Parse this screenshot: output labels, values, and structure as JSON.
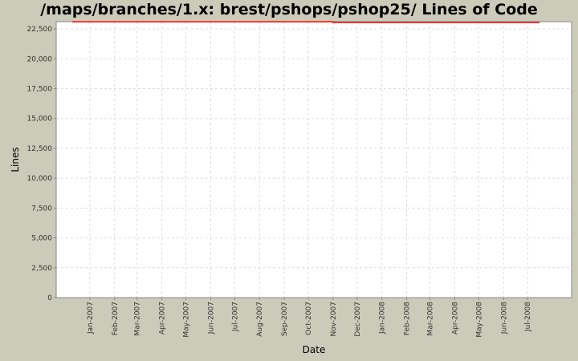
{
  "chart_data": {
    "type": "line",
    "title": "/maps/branches/1.x: brest/pshops/pshop25/ Lines of Code",
    "xlabel": "Date",
    "ylabel": "Lines",
    "ylim": [
      0,
      23110
    ],
    "xlim": [
      "2006-11-20",
      "2008-08-25"
    ],
    "grid": true,
    "yticks": [
      0,
      2500,
      5000,
      7500,
      10000,
      12500,
      15000,
      17500,
      20000,
      22500
    ],
    "ytick_labels": [
      "0",
      "2,500",
      "5,000",
      "7,500",
      "10,000",
      "12,500",
      "15,000",
      "17,500",
      "20,000",
      "22,500"
    ],
    "xticks": [
      "2007-01-01",
      "2007-02-01",
      "2007-03-01",
      "2007-04-01",
      "2007-05-01",
      "2007-06-01",
      "2007-07-01",
      "2007-08-01",
      "2007-09-01",
      "2007-10-01",
      "2007-11-01",
      "2007-12-01",
      "2008-01-01",
      "2008-02-01",
      "2008-03-01",
      "2008-04-01",
      "2008-05-01",
      "2008-06-01",
      "2008-07-01"
    ],
    "xtick_labels": [
      "Jan-2007",
      "Feb-2007",
      "Mar-2007",
      "Apr-2007",
      "May-2007",
      "Jun-2007",
      "Jul-2007",
      "Aug-2007",
      "Sep-2007",
      "Oct-2007",
      "Nov-2007",
      "Dec-2007",
      "Jan-2008",
      "Feb-2008",
      "Mar-2008",
      "Apr-2008",
      "May-2008",
      "Jun-2008",
      "Jul-2008"
    ],
    "series": [
      {
        "color": "#ff0000",
        "points": [
          [
            "2006-12-10",
            23100
          ],
          [
            "2007-11-01",
            23100
          ],
          [
            "2007-11-01",
            23040
          ],
          [
            "2008-07-16",
            23040
          ]
        ]
      }
    ]
  }
}
